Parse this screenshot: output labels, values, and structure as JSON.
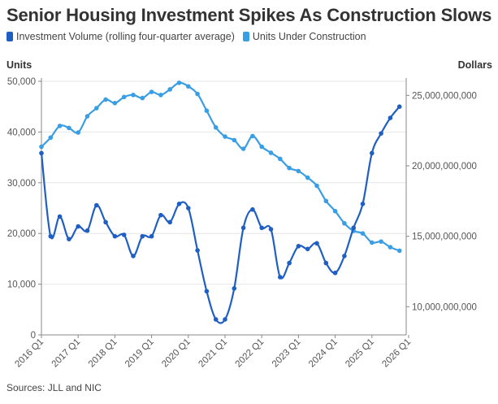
{
  "title": "Senior Housing Investment Spikes As Construction Slows",
  "source": "Sources: JLL and NIC",
  "colors": {
    "investment": "#1f5fc4",
    "units": "#3a9ee5",
    "grid": "#e6e6e6",
    "axis": "#888888"
  },
  "chart_data": {
    "type": "line",
    "x_tick_labels": [
      "2016 Q1",
      "2017 Q1",
      "2018 Q1",
      "2019 Q1",
      "2020 Q1",
      "2021 Q1",
      "2022 Q1",
      "2023 Q1",
      "2024 Q1",
      "2025 Q1",
      "2026 Q1"
    ],
    "x": [
      "2016 Q1",
      "2016 Q2",
      "2016 Q3",
      "2016 Q4",
      "2017 Q1",
      "2017 Q2",
      "2017 Q3",
      "2017 Q4",
      "2018 Q1",
      "2018 Q2",
      "2018 Q3",
      "2018 Q4",
      "2019 Q1",
      "2019 Q2",
      "2019 Q3",
      "2019 Q4",
      "2020 Q1",
      "2020 Q2",
      "2020 Q3",
      "2020 Q4",
      "2021 Q1",
      "2021 Q2",
      "2021 Q3",
      "2021 Q4",
      "2022 Q1",
      "2022 Q2",
      "2022 Q3",
      "2022 Q4",
      "2023 Q1",
      "2023 Q2",
      "2023 Q3",
      "2023 Q4",
      "2024 Q1",
      "2024 Q2",
      "2024 Q3",
      "2024 Q4",
      "2025 Q1",
      "2025 Q2",
      "2025 Q3",
      "2025 Q4"
    ],
    "y_left": {
      "label": "Units",
      "range": [
        0,
        50000
      ],
      "ticks": [
        0,
        10000,
        20000,
        30000,
        40000,
        50000
      ],
      "tick_labels": [
        "0",
        "10,000",
        "20,000",
        "30,000",
        "40,000",
        "50,000"
      ]
    },
    "y_right": {
      "label": "Dollars",
      "range": [
        8000000000,
        26000000000
      ],
      "ticks": [
        10000000000,
        15000000000,
        20000000000,
        25000000000
      ],
      "tick_labels": [
        "10,000,000,000",
        "15,000,000,000",
        "20,000,000,000",
        "25,000,000,000"
      ]
    },
    "grid": "horizontal",
    "legend_position": "top-left",
    "series": [
      {
        "name": "Investment Volume (rolling four-quarter average)",
        "axis": "right",
        "color": "#1f5fc4",
        "values": [
          20900000000,
          15000000000,
          16400000000,
          14800000000,
          15700000000,
          15400000000,
          17200000000,
          16000000000,
          15000000000,
          15100000000,
          13600000000,
          15000000000,
          15000000000,
          16500000000,
          16000000000,
          17300000000,
          17000000000,
          14000000000,
          11100000000,
          9100000000,
          9100000000,
          11300000000,
          15600000000,
          16900000000,
          15600000000,
          15500000000,
          12100000000,
          13100000000,
          14300000000,
          14100000000,
          14500000000,
          13100000000,
          12400000000,
          13600000000,
          15600000000,
          17300000000,
          20900000000,
          22300000000,
          23400000000,
          24200000000
        ]
      },
      {
        "name": "Units Under Construction",
        "axis": "left",
        "color": "#3a9ee5",
        "values": [
          37100,
          38900,
          41200,
          40800,
          39900,
          43100,
          44700,
          46400,
          45700,
          46900,
          47300,
          46700,
          47900,
          47300,
          48400,
          49700,
          49000,
          47500,
          44200,
          40900,
          39100,
          38400,
          36700,
          39200,
          37100,
          35900,
          34700,
          32900,
          32300,
          31000,
          29400,
          26400,
          24400,
          22000,
          20500,
          20000,
          18200,
          18400,
          17300,
          16600
        ]
      }
    ]
  }
}
